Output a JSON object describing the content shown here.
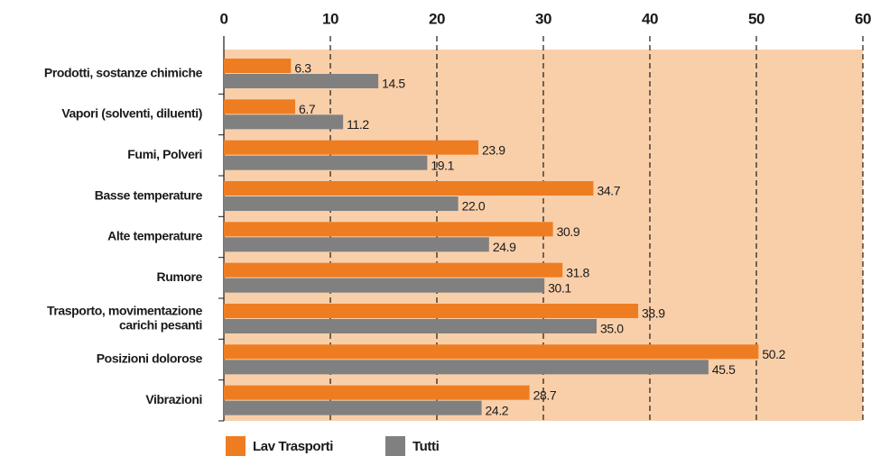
{
  "chart_data": {
    "type": "bar",
    "orientation": "horizontal",
    "categories": [
      "Prodotti, sostanze chimiche",
      "Vapori (solventi, diluenti)",
      "Fumi, Polveri",
      "Basse temperature",
      "Alte temperature",
      "Rumore",
      "Trasporto, movimentazione\ncarichi pesanti",
      "Posizioni dolorose",
      "Vibrazioni"
    ],
    "series": [
      {
        "name": "Lav Trasporti",
        "color": "#ee7d22",
        "values": [
          6.3,
          6.7,
          23.9,
          34.7,
          30.9,
          31.8,
          38.9,
          50.2,
          28.7
        ],
        "value_labels": [
          "6.3",
          "6.7",
          "23.9",
          "34.7",
          "30.9",
          "31.8",
          "38.9",
          "50.2",
          "28.7"
        ]
      },
      {
        "name": "Tutti",
        "color": "#808080",
        "values": [
          14.5,
          11.2,
          19.1,
          22,
          24.9,
          30.1,
          35,
          45.5,
          24.2
        ],
        "value_labels": [
          "14.5",
          "11.2",
          "19.1",
          "22.0",
          "24.9",
          "30.1",
          "35.0",
          "45.5",
          "24.2"
        ]
      }
    ],
    "xlim": [
      0,
      60
    ],
    "xticks": [
      0,
      10,
      20,
      30,
      40,
      50,
      60
    ],
    "grid": true,
    "legend": "bottom",
    "background": "#f9cfa9"
  }
}
